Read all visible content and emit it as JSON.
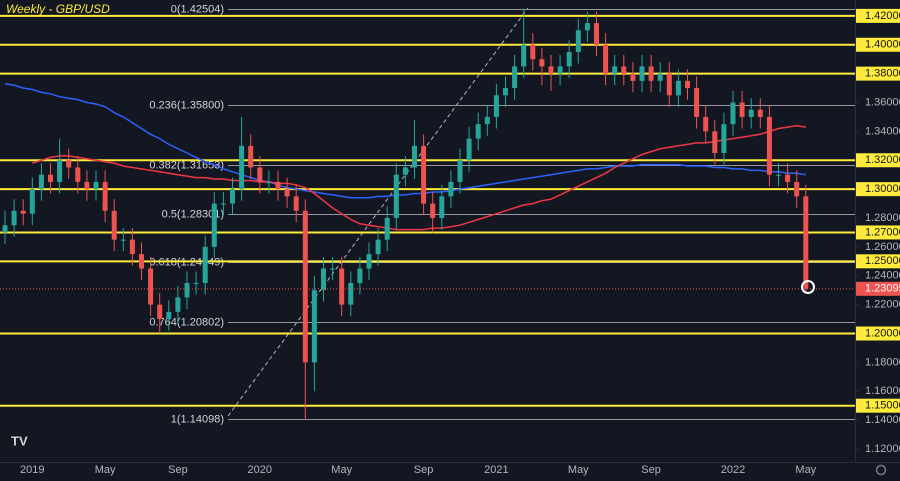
{
  "chart_data": {
    "type": "candlestick",
    "title": "Weekly - GBP/USD",
    "categories": [
      null,
      null,
      null,
      "2019",
      null,
      null,
      null,
      null,
      null,
      null,
      null,
      "May",
      null,
      null,
      null,
      null,
      null,
      null,
      null,
      "Sep",
      null,
      null,
      null,
      null,
      null,
      null,
      null,
      null,
      "2020",
      null,
      null,
      null,
      null,
      null,
      null,
      null,
      null,
      "May",
      null,
      null,
      null,
      null,
      null,
      null,
      null,
      null,
      "Sep",
      null,
      null,
      null,
      null,
      null,
      null,
      null,
      "2021",
      null,
      null,
      null,
      null,
      null,
      null,
      null,
      null,
      "May",
      null,
      null,
      null,
      null,
      null,
      null,
      null,
      "Sep",
      null,
      null,
      null,
      null,
      null,
      null,
      null,
      null,
      "2022",
      null,
      null,
      null,
      null,
      null,
      null,
      null,
      "May"
    ],
    "open": [
      1.27,
      1.275,
      1.285,
      1.283,
      1.3,
      1.31,
      1.305,
      1.32,
      1.315,
      1.305,
      1.3,
      1.305,
      1.285,
      1.265,
      1.265,
      1.255,
      1.245,
      1.22,
      1.21,
      1.215,
      1.225,
      1.235,
      1.235,
      1.26,
      1.29,
      1.29,
      1.3,
      1.33,
      1.315,
      1.305,
      1.305,
      1.3,
      1.295,
      1.285,
      1.18,
      1.23,
      1.245,
      1.245,
      1.22,
      1.235,
      1.245,
      1.255,
      1.265,
      1.28,
      1.31,
      1.315,
      1.33,
      1.29,
      1.28,
      1.295,
      1.305,
      1.32,
      1.335,
      1.345,
      1.35,
      1.365,
      1.37,
      1.385,
      1.4,
      1.39,
      1.385,
      1.38,
      1.385,
      1.395,
      1.41,
      1.415,
      1.4,
      1.38,
      1.385,
      1.38,
      1.375,
      1.385,
      1.375,
      1.38,
      1.365,
      1.375,
      1.37,
      1.35,
      1.34,
      1.325,
      1.345,
      1.36,
      1.35,
      1.355,
      1.35,
      1.31,
      1.31,
      1.305,
      1.295
    ],
    "high": [
      1.285,
      1.293,
      1.293,
      1.308,
      1.318,
      1.318,
      1.335,
      1.328,
      1.323,
      1.313,
      1.313,
      1.313,
      1.293,
      1.273,
      1.273,
      1.263,
      1.253,
      1.228,
      1.223,
      1.233,
      1.243,
      1.243,
      1.268,
      1.298,
      1.298,
      1.308,
      1.35,
      1.338,
      1.323,
      1.313,
      1.313,
      1.308,
      1.303,
      1.293,
      1.24,
      1.253,
      1.253,
      1.253,
      1.243,
      1.253,
      1.263,
      1.273,
      1.288,
      1.318,
      1.323,
      1.348,
      1.338,
      1.298,
      1.303,
      1.313,
      1.328,
      1.343,
      1.353,
      1.358,
      1.373,
      1.378,
      1.393,
      1.42504,
      1.408,
      1.398,
      1.393,
      1.393,
      1.403,
      1.418,
      1.423,
      1.423,
      1.408,
      1.393,
      1.393,
      1.388,
      1.393,
      1.393,
      1.388,
      1.388,
      1.383,
      1.383,
      1.378,
      1.358,
      1.348,
      1.353,
      1.368,
      1.368,
      1.363,
      1.363,
      1.358,
      1.318,
      1.318,
      1.313,
      1.303
    ],
    "low": [
      1.262,
      1.267,
      1.275,
      1.275,
      1.292,
      1.297,
      1.297,
      1.307,
      1.297,
      1.292,
      1.292,
      1.277,
      1.257,
      1.257,
      1.247,
      1.237,
      1.212,
      1.2,
      1.202,
      1.207,
      1.217,
      1.227,
      1.227,
      1.252,
      1.282,
      1.282,
      1.292,
      1.307,
      1.297,
      1.297,
      1.292,
      1.287,
      1.277,
      1.14098,
      1.16,
      1.222,
      1.237,
      1.212,
      1.212,
      1.227,
      1.237,
      1.247,
      1.257,
      1.272,
      1.302,
      1.307,
      1.282,
      1.27,
      1.272,
      1.287,
      1.297,
      1.312,
      1.327,
      1.337,
      1.342,
      1.357,
      1.362,
      1.377,
      1.382,
      1.372,
      1.368,
      1.372,
      1.377,
      1.387,
      1.402,
      1.392,
      1.372,
      1.372,
      1.372,
      1.367,
      1.367,
      1.367,
      1.367,
      1.357,
      1.357,
      1.362,
      1.342,
      1.332,
      1.317,
      1.317,
      1.337,
      1.342,
      1.342,
      1.342,
      1.302,
      1.302,
      1.297,
      1.287,
      1.229
    ],
    "close": [
      1.275,
      1.285,
      1.283,
      1.3,
      1.31,
      1.305,
      1.32,
      1.315,
      1.305,
      1.3,
      1.305,
      1.285,
      1.265,
      1.265,
      1.255,
      1.245,
      1.22,
      1.21,
      1.215,
      1.225,
      1.235,
      1.235,
      1.26,
      1.29,
      1.29,
      1.3,
      1.33,
      1.315,
      1.305,
      1.305,
      1.3,
      1.295,
      1.285,
      1.18,
      1.23,
      1.245,
      1.245,
      1.22,
      1.235,
      1.245,
      1.255,
      1.265,
      1.28,
      1.31,
      1.315,
      1.33,
      1.29,
      1.28,
      1.295,
      1.305,
      1.32,
      1.335,
      1.345,
      1.35,
      1.365,
      1.37,
      1.385,
      1.4,
      1.39,
      1.385,
      1.38,
      1.385,
      1.395,
      1.41,
      1.415,
      1.4,
      1.38,
      1.385,
      1.38,
      1.375,
      1.385,
      1.375,
      1.38,
      1.365,
      1.375,
      1.37,
      1.35,
      1.34,
      1.325,
      1.345,
      1.36,
      1.35,
      1.355,
      1.35,
      1.31,
      1.31,
      1.305,
      1.295,
      1.23095
    ],
    "up_color": "#26a69a",
    "down_color": "#ef5350",
    "moving_averages": [
      {
        "color": "#2962ff",
        "values": [
          1.373,
          1.372,
          1.37,
          1.369,
          1.367,
          1.366,
          1.364,
          1.363,
          1.362,
          1.36,
          1.359,
          1.357,
          1.353,
          1.35,
          1.346,
          1.342,
          1.338,
          1.335,
          1.331,
          1.328,
          1.325,
          1.322,
          1.319,
          1.317,
          1.314,
          1.312,
          1.31,
          1.308,
          1.306,
          1.305,
          1.303,
          1.301,
          1.3,
          1.299,
          1.298,
          1.297,
          1.296,
          1.295,
          1.294,
          1.294,
          1.294,
          1.295,
          1.295,
          1.296,
          1.296,
          1.297,
          1.297,
          1.298,
          1.298,
          1.299,
          1.3,
          1.301,
          1.302,
          1.303,
          1.304,
          1.305,
          1.306,
          1.307,
          1.308,
          1.309,
          1.31,
          1.311,
          1.312,
          1.313,
          1.314,
          1.314,
          1.315,
          1.316,
          1.316,
          1.316,
          1.317,
          1.317,
          1.317,
          1.317,
          1.317,
          1.316,
          1.316,
          1.316,
          1.315,
          1.315,
          1.314,
          1.314,
          1.313,
          1.313,
          1.312,
          1.312,
          1.311,
          1.311,
          1.31
        ]
      },
      {
        "color": "#f23645",
        "values": [
          null,
          null,
          null,
          1.318,
          1.32,
          1.322,
          1.323,
          1.323,
          1.322,
          1.321,
          1.32,
          1.319,
          1.318,
          1.316,
          1.315,
          1.314,
          1.313,
          1.312,
          1.311,
          1.31,
          1.309,
          1.308,
          1.308,
          1.307,
          1.307,
          1.306,
          1.306,
          1.306,
          1.305,
          1.305,
          1.304,
          1.304,
          1.303,
          1.301,
          1.297,
          1.292,
          1.287,
          1.283,
          1.279,
          1.276,
          1.275,
          1.274,
          1.273,
          1.272,
          1.272,
          1.272,
          1.272,
          1.273,
          1.273,
          1.274,
          1.275,
          1.277,
          1.279,
          1.281,
          1.283,
          1.285,
          1.287,
          1.289,
          1.29,
          1.292,
          1.293,
          1.296,
          1.299,
          1.302,
          1.305,
          1.308,
          1.311,
          1.315,
          1.318,
          1.321,
          1.324,
          1.326,
          1.328,
          1.329,
          1.33,
          1.331,
          1.332,
          1.332,
          1.333,
          1.334,
          1.335,
          1.336,
          1.337,
          1.338,
          1.34,
          1.342,
          1.343,
          1.344,
          1.343
        ]
      }
    ],
    "ylim": [
      1.111,
      1.431
    ],
    "yticks": [
      {
        "value": 1.36,
        "label": "1.36000"
      },
      {
        "value": 1.34,
        "label": "1.34000"
      },
      {
        "value": 1.28,
        "label": "1.28000"
      },
      {
        "value": 1.26,
        "label": "1.26000"
      },
      {
        "value": 1.24,
        "label": "1.24000"
      },
      {
        "value": 1.22,
        "label": "1.22000"
      },
      {
        "value": 1.18,
        "label": "1.18000"
      },
      {
        "value": 1.16,
        "label": "1.16000"
      },
      {
        "value": 1.14,
        "label": "1.14000"
      },
      {
        "value": 1.12,
        "label": "1.12000"
      }
    ],
    "levels": [
      {
        "value": 1.42,
        "label": "1.42000"
      },
      {
        "value": 1.4,
        "label": "1.40000"
      },
      {
        "value": 1.38,
        "label": "1.38000"
      },
      {
        "value": 1.32,
        "label": "1.32000"
      },
      {
        "value": 1.3,
        "label": "1.30000"
      },
      {
        "value": 1.27,
        "label": "1.27000"
      },
      {
        "value": 1.25,
        "label": "1.25000"
      },
      {
        "value": 1.2,
        "label": "1.20000"
      },
      {
        "value": 1.15,
        "label": "1.15000"
      }
    ],
    "level_color": "#ffeb3b",
    "fib_levels": [
      {
        "value": 1.42504,
        "label": "0(1.42504)"
      },
      {
        "value": 1.358,
        "label": "0.236(1.35800)"
      },
      {
        "value": 1.31653,
        "label": "0.382(1.31653)"
      },
      {
        "value": 1.28301,
        "label": "0.5(1.28301)"
      },
      {
        "value": 1.24949,
        "label": "0.618(1.24949)"
      },
      {
        "value": 1.20802,
        "label": "0.764(1.20802)"
      },
      {
        "value": 1.14098,
        "label": "1(1.14098)"
      }
    ],
    "last_price": {
      "value": 1.23095,
      "label": "1.23095"
    }
  }
}
